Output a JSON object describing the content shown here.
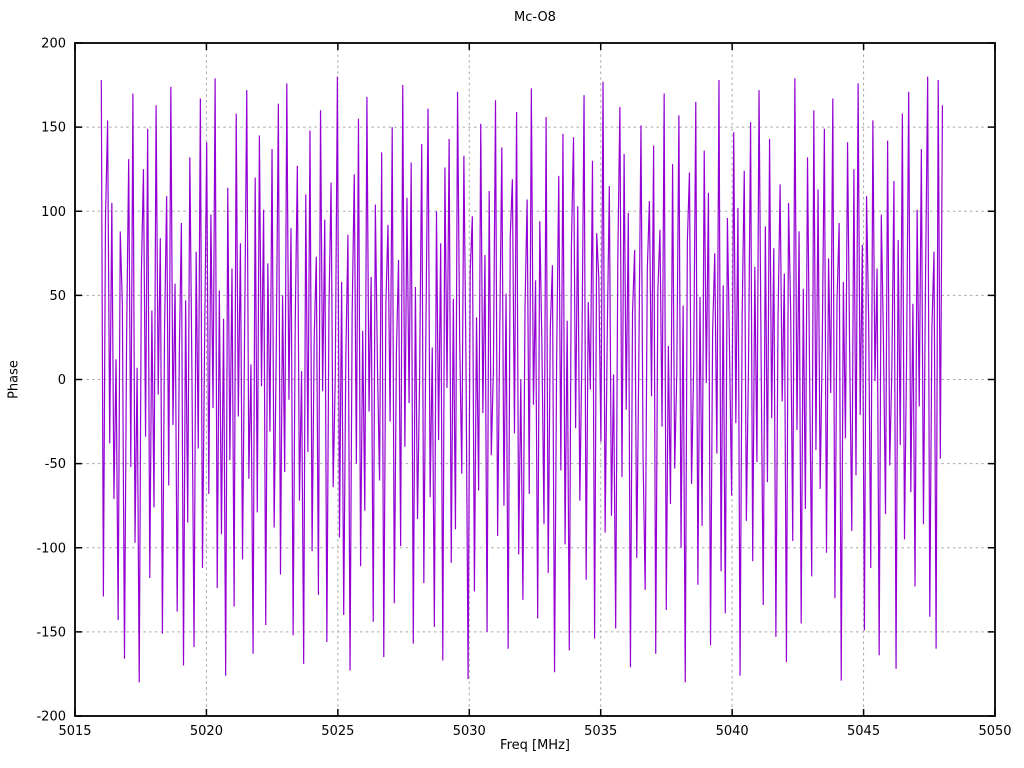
{
  "title": "Mc-O8",
  "chart_data": {
    "type": "line",
    "title": "Mc-O8",
    "xlabel": "Freq [MHz]",
    "ylabel": "Phase",
    "xlim": [
      5015,
      5050
    ],
    "ylim": [
      -200,
      200
    ],
    "xticks": [
      5015,
      5020,
      5025,
      5030,
      5035,
      5040,
      5045,
      5050
    ],
    "yticks": [
      -200,
      -150,
      -100,
      -50,
      0,
      50,
      100,
      150,
      200
    ],
    "grid": true,
    "legend": "none",
    "line_color": "#9400d3",
    "grid_color": "#a8a8a8",
    "frame_color": "#000000",
    "x_start": 5016,
    "x_end": 5048,
    "values": [
      178,
      -129,
      96,
      154,
      -38,
      105,
      -71,
      12,
      -143,
      88,
      44,
      -166,
      23,
      131,
      -52,
      170,
      -97,
      7,
      -180,
      62,
      125,
      -34,
      149,
      -118,
      41,
      -76,
      163,
      -9,
      84,
      -151,
      28,
      109,
      -63,
      174,
      -27,
      57,
      -138,
      15,
      93,
      -170,
      47,
      -85,
      132,
      3,
      -159,
      76,
      -41,
      167,
      -112,
      21,
      141,
      -68,
      98,
      -17,
      179,
      -124,
      53,
      -92,
      36,
      -176,
      114,
      -48,
      66,
      -135,
      158,
      -22,
      81,
      -107,
      30,
      172,
      -59,
      9,
      -163,
      120,
      -79,
      145,
      -4,
      101,
      -146,
      69,
      -31,
      137,
      -88,
      18,
      164,
      -116,
      50,
      -55,
      176,
      -12,
      90,
      -152,
      34,
      127,
      -72,
      5,
      -169,
      110,
      -43,
      148,
      -102,
      25,
      73,
      -128,
      160,
      -7,
      95,
      -156,
      42,
      117,
      -64,
      2,
      180,
      -94,
      58,
      -140,
      13,
      86,
      -173,
      39,
      122,
      -50,
      155,
      -111,
      29,
      -78,
      168,
      -19,
      61,
      -144,
      104,
      8,
      -60,
      135,
      -165,
      45,
      92,
      -25,
      150,
      -133,
      16,
      71,
      -99,
      175,
      -40,
      108,
      -14,
      129,
      -157,
      55,
      -83,
      1,
      140,
      -121,
      33,
      161,
      -70,
      19,
      -147,
      100,
      -36,
      81,
      -167,
      126,
      -5,
      143,
      -109,
      48,
      -89,
      171,
      24,
      -56,
      133,
      10,
      -178,
      64,
      97,
      -126,
      37,
      -66,
      152,
      -20,
      74,
      -150,
      112,
      -45,
      6,
      166,
      -93,
      27,
      138,
      -75,
      51,
      -160,
      85,
      119,
      -32,
      159,
      -104,
      0,
      -131,
      43,
      107,
      -68,
      173,
      -15,
      59,
      -142,
      94,
      22,
      -86,
      156,
      -115,
      31,
      68,
      -174,
      11,
      121,
      -54,
      146,
      -98,
      35,
      -161,
      79,
      144,
      -29,
      103,
      -72,
      17,
      169,
      -119,
      46,
      -6,
      130,
      -154,
      87,
      60,
      -37,
      177,
      -91,
      26,
      115,
      -81,
      3,
      -148,
      70,
      162,
      -58,
      134,
      -18,
      99,
      -171,
      40,
      77,
      -106,
      14,
      151,
      -46,
      -125,
      65,
      106,
      -10,
      139,
      -163,
      52,
      89,
      -28,
      170,
      -137,
      20,
      -74,
      128,
      -53,
      4,
      157,
      -100,
      44,
      -180,
      82,
      123,
      -62,
      8,
      165,
      -122,
      49,
      -87,
      136,
      -2,
      111,
      -158,
      29,
      75,
      -44,
      178,
      -114,
      56,
      -139,
      96,
      18,
      -69,
      147,
      -26,
      102,
      -176,
      38,
      124,
      -84,
      7,
      153,
      -108,
      67,
      -49,
      172,
      12,
      -134,
      91,
      -61,
      143,
      -23,
      78,
      -153,
      34,
      116,
      -13,
      63,
      -168,
      105,
      41,
      -96,
      179,
      -30,
      88,
      -145,
      54,
      -77,
      132,
      2,
      -117,
      160,
      -42,
      113,
      -65,
      21,
      149,
      -103,
      72,
      -8,
      167,
      -130,
      47,
      93,
      -179,
      58,
      -35,
      141,
      16,
      -90,
      125,
      -57,
      176,
      -21,
      80,
      -149,
      109,
      36,
      -112,
      154,
      -1,
      66,
      -164,
      98,
      25,
      -80,
      142,
      -51,
      5,
      118,
      -172,
      83,
      -39,
      158,
      -95,
      13,
      171,
      -67,
      45,
      -123,
      101,
      -16,
      137,
      -86,
      62,
      180,
      -141,
      30,
      76,
      -160,
      178,
      -47,
      163
    ]
  }
}
